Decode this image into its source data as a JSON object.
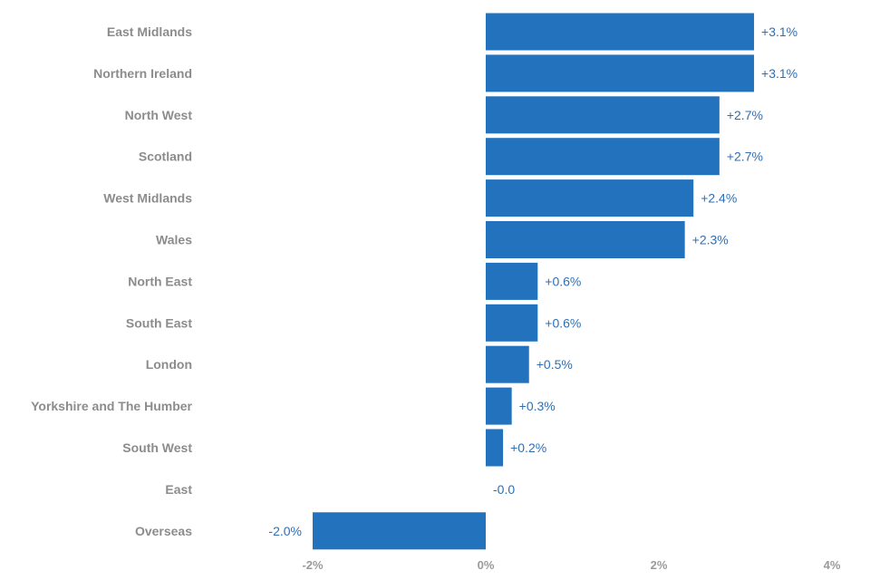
{
  "chart_data": {
    "type": "bar",
    "orientation": "horizontal",
    "categories": [
      "East Midlands",
      "Northern Ireland",
      "North West",
      "Scotland",
      "West Midlands",
      "Wales",
      "North East",
      "South East",
      "London",
      "Yorkshire and The Humber",
      "South West",
      "East",
      "Overseas"
    ],
    "values": [
      3.1,
      3.1,
      2.7,
      2.7,
      2.4,
      2.3,
      0.6,
      0.6,
      0.5,
      0.3,
      0.2,
      -0.0,
      -2.0
    ],
    "value_labels": [
      "+3.1%",
      "+3.1%",
      "+2.7%",
      "+2.7%",
      "+2.4%",
      "+2.3%",
      "+0.6%",
      "+0.6%",
      "+0.5%",
      "+0.3%",
      "+0.2%",
      "-0.0",
      "-2.0%"
    ],
    "xlim": [
      -2,
      4
    ],
    "x_ticks": [
      -2,
      0,
      2,
      4
    ],
    "x_tick_labels": [
      "-2%",
      "0%",
      "2%",
      "4%"
    ],
    "grid": false,
    "legend": "none",
    "colors": {
      "bar": "#2272bd",
      "value_label": "#2e6fb5",
      "category_label": "#8c8c8c",
      "tick_label": "#9a9a9a"
    }
  }
}
